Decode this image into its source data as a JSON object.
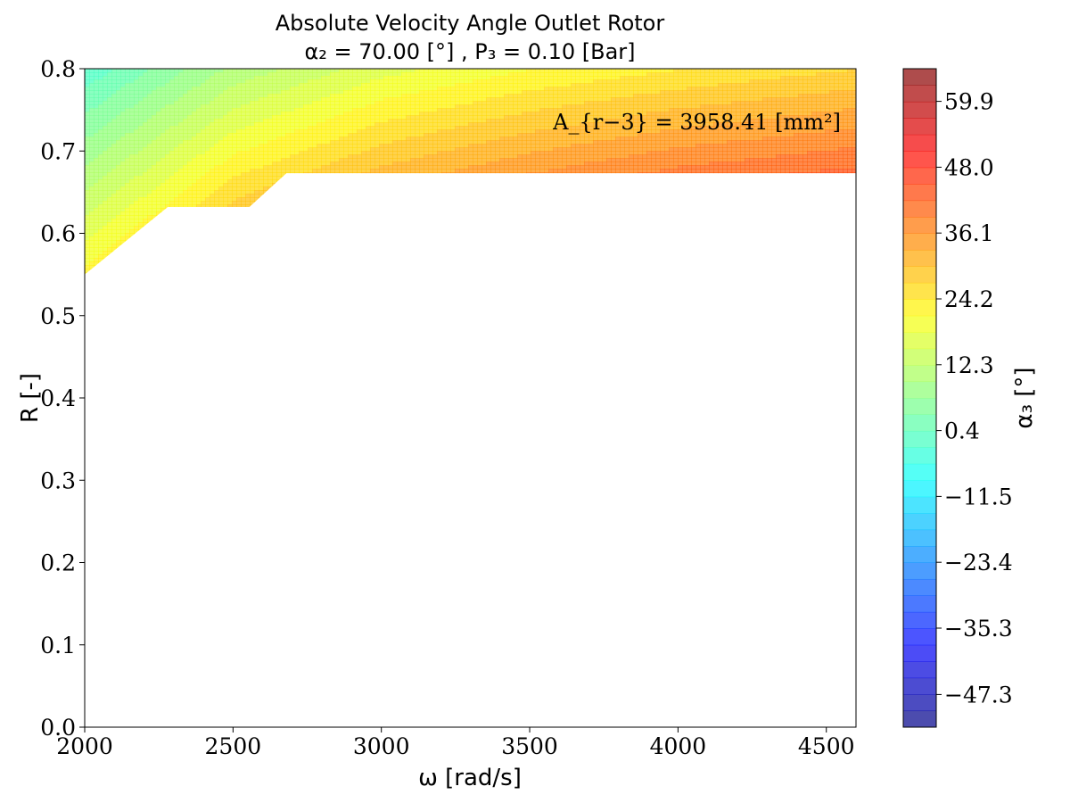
{
  "chart_data": {
    "type": "contour",
    "title_line1": "Absolute Velocity Angle Outlet Rotor",
    "title_line2": "α₂ = 70.00 [°] , P₃ = 0.10 [Bar]",
    "xlabel": "ω [rad/s]",
    "ylabel": "R [-]",
    "xlim": [
      2000,
      4600
    ],
    "ylim": [
      0.0,
      0.8
    ],
    "xticks": [
      2000,
      2500,
      3000,
      3500,
      4000,
      4500
    ],
    "yticks": [
      0.0,
      0.1,
      0.2,
      0.3,
      0.4,
      0.5,
      0.6,
      0.7,
      0.8
    ],
    "annotation": "A_{r−3} = 3958.41 [mm²]",
    "annotation_position": "top-right",
    "colorbar": {
      "label": "α₃ [°]",
      "range": [
        -53.2,
        65.8
      ],
      "levels": 40,
      "ticks": [
        -47.3,
        -35.3,
        -23.4,
        -11.5,
        0.4,
        12.3,
        24.2,
        36.1,
        48.0,
        59.9
      ],
      "colormap": "jet",
      "alpha": 0.7
    },
    "valid_region_boundary": [
      {
        "omega": 2000,
        "R": 0.55
      },
      {
        "omega": 2280,
        "R": 0.632
      },
      {
        "omega": 2555,
        "R": 0.632
      },
      {
        "omega": 2680,
        "R": 0.673
      },
      {
        "omega": 4600,
        "R": 0.673
      }
    ],
    "field_samples": [
      {
        "omega": 2000,
        "R": 0.8,
        "alpha3": -2
      },
      {
        "omega": 2000,
        "R": 0.55,
        "alpha3": 22
      },
      {
        "omega": 2500,
        "R": 0.8,
        "alpha3": 10
      },
      {
        "omega": 2500,
        "R": 0.632,
        "alpha3": 28
      },
      {
        "omega": 3000,
        "R": 0.8,
        "alpha3": 17
      },
      {
        "omega": 3000,
        "R": 0.673,
        "alpha3": 31
      },
      {
        "omega": 3500,
        "R": 0.8,
        "alpha3": 21
      },
      {
        "omega": 3500,
        "R": 0.673,
        "alpha3": 36
      },
      {
        "omega": 4000,
        "R": 0.8,
        "alpha3": 24
      },
      {
        "omega": 4000,
        "R": 0.673,
        "alpha3": 40
      },
      {
        "omega": 4600,
        "R": 0.8,
        "alpha3": 27
      },
      {
        "omega": 4600,
        "R": 0.673,
        "alpha3": 43
      }
    ],
    "grid": false
  }
}
